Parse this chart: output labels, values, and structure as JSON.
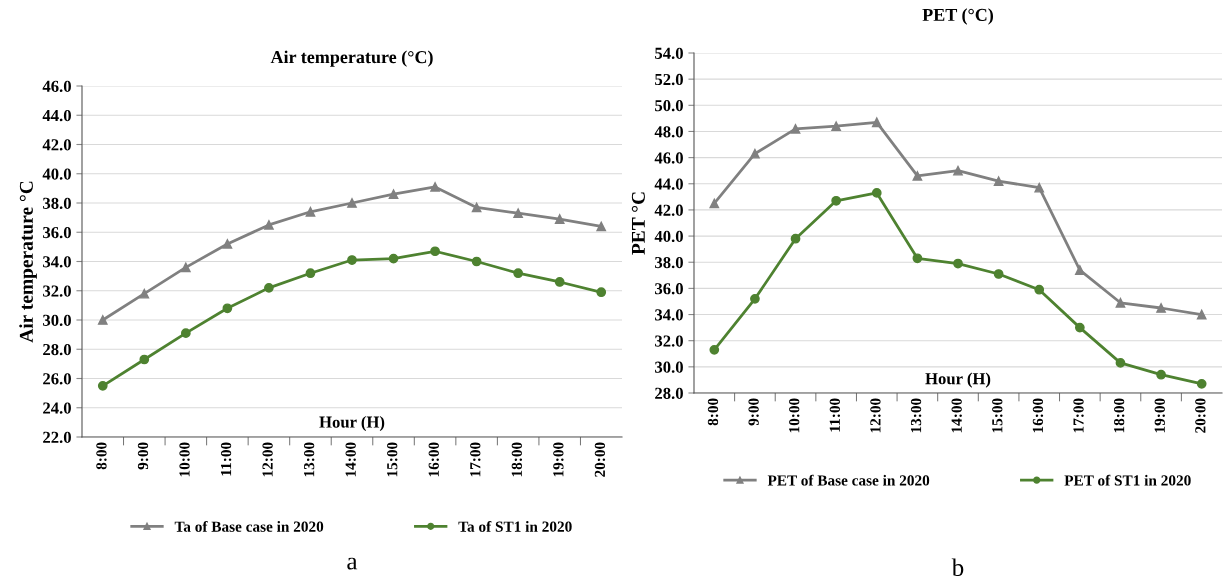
{
  "chart_data": [
    {
      "type": "line",
      "title": "Air temperature (°C)",
      "xlabel": "Hour (H)",
      "ylabel": "Air temperature °C",
      "categories": [
        "8:00",
        "9:00",
        "10:00",
        "11:00",
        "12:00",
        "13:00",
        "14:00",
        "15:00",
        "16:00",
        "17:00",
        "18:00",
        "19:00",
        "20:00"
      ],
      "series": [
        {
          "name": "Ta of Base case in 2020",
          "color": "#808080",
          "marker": "triangle",
          "values": [
            30.0,
            31.8,
            33.6,
            35.2,
            36.5,
            37.4,
            38.0,
            38.6,
            39.1,
            37.7,
            37.3,
            36.9,
            36.4
          ]
        },
        {
          "name": "Ta of ST1 in 2020",
          "color": "#4e8230",
          "marker": "circle",
          "values": [
            25.5,
            27.3,
            29.1,
            30.8,
            32.2,
            33.2,
            34.1,
            34.2,
            34.7,
            34.0,
            33.2,
            32.6,
            31.9
          ]
        }
      ],
      "ylim": [
        22,
        46
      ],
      "yticks": [
        {
          "value": 22,
          "label": "22.0"
        },
        {
          "value": 24,
          "label": "24.0"
        },
        {
          "value": 26,
          "label": "26.0"
        },
        {
          "value": 28,
          "label": "28.0"
        },
        {
          "value": 30,
          "label": "30.0"
        },
        {
          "value": 32,
          "label": "32.0"
        },
        {
          "value": 34,
          "label": "34.0"
        },
        {
          "value": 36,
          "label": "36.0"
        },
        {
          "value": 38,
          "label": "38.0"
        },
        {
          "value": 40,
          "label": "40.0"
        },
        {
          "value": 42,
          "label": "42.0"
        },
        {
          "value": 44,
          "label": "44.0"
        },
        {
          "value": 46,
          "label": "46.0"
        }
      ],
      "grid": "y",
      "legend": "bottom",
      "line_style": "solid",
      "annotations": [
        "a"
      ]
    },
    {
      "type": "line",
      "title": "PET (°C)",
      "xlabel": "Hour (H)",
      "ylabel": "PET °C",
      "categories": [
        "8:00",
        "9:00",
        "10:00",
        "11:00",
        "12:00",
        "13:00",
        "14:00",
        "15:00",
        "16:00",
        "17:00",
        "18:00",
        "19:00",
        "20:00"
      ],
      "series": [
        {
          "name": "PET of Base case in 2020",
          "color": "#808080",
          "marker": "triangle",
          "values": [
            42.5,
            46.3,
            48.2,
            48.4,
            48.7,
            44.6,
            45.0,
            44.2,
            43.7,
            37.4,
            34.9,
            34.5,
            34.0
          ]
        },
        {
          "name": "PET of ST1 in 2020",
          "color": "#4e8230",
          "marker": "circle",
          "values": [
            31.3,
            35.2,
            39.8,
            42.7,
            43.3,
            38.3,
            37.9,
            37.1,
            35.9,
            33.0,
            30.3,
            29.4,
            28.7
          ]
        }
      ],
      "ylim": [
        28,
        54
      ],
      "yticks": [
        {
          "value": 28,
          "label": "28.0"
        },
        {
          "value": 30,
          "label": "30.0"
        },
        {
          "value": 32,
          "label": "32.0"
        },
        {
          "value": 34,
          "label": "34.0"
        },
        {
          "value": 36,
          "label": "36.0"
        },
        {
          "value": 38,
          "label": "38.0"
        },
        {
          "value": 40,
          "label": "40.0"
        },
        {
          "value": 42,
          "label": "42.0"
        },
        {
          "value": 44,
          "label": "44.0"
        },
        {
          "value": 46,
          "label": "46.0"
        },
        {
          "value": 48,
          "label": "48.0"
        },
        {
          "value": 50,
          "label": "50.0"
        },
        {
          "value": 52,
          "label": "52.0"
        },
        {
          "value": 54,
          "label": "54.0"
        }
      ],
      "grid": "y",
      "legend": "bottom",
      "line_style": "solid",
      "annotations": [
        "b"
      ]
    }
  ]
}
